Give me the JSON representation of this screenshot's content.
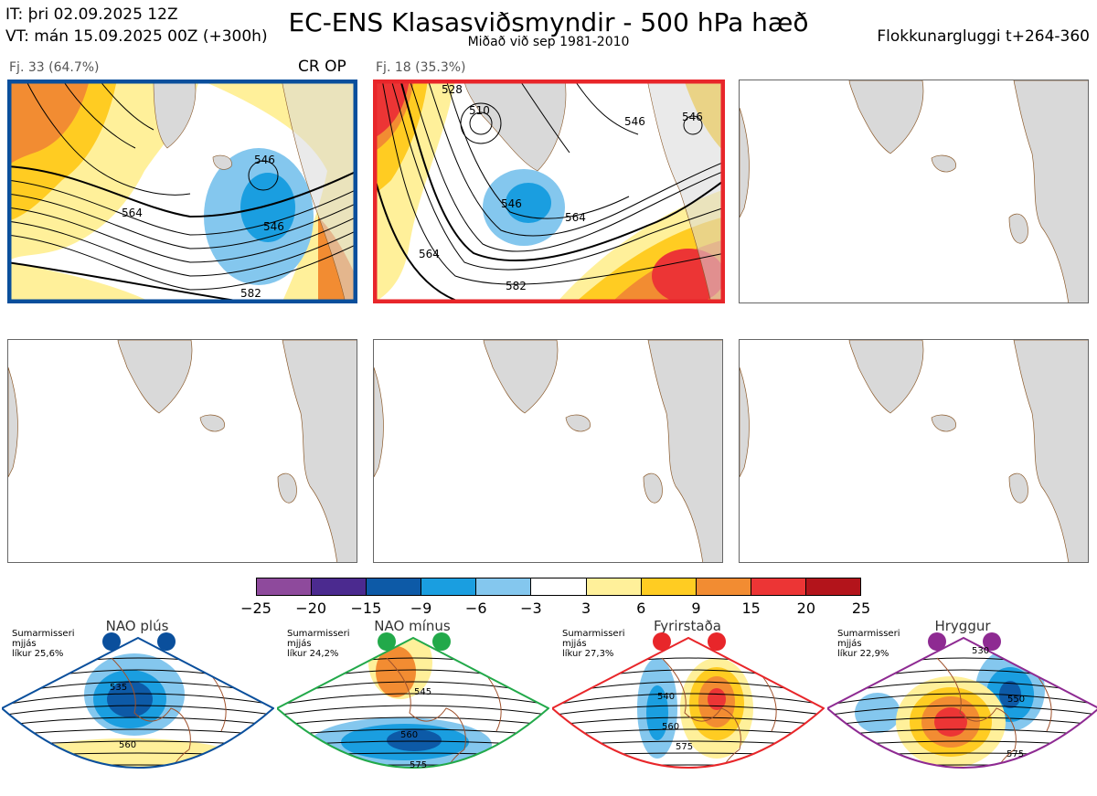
{
  "header": {
    "it_line": "IT: þri 02.09.2025 12Z",
    "vt_line": "VT: mán 15.09.2025 00Z  (+300h)",
    "title": "EC-ENS Klasasviðsmyndir - 500 hPa hæð",
    "subtitle": "Miðað við sep 1981-2010",
    "window": "Flokkunargluggi t+264-360"
  },
  "clusters": [
    {
      "label": "Fj. 33 (64.7%)",
      "tag": "CR OP",
      "border": "#0a4f9c",
      "contours": [
        "546",
        "564",
        "582",
        "546"
      ]
    },
    {
      "label": "Fj. 18 (35.3%)",
      "tag": "",
      "border": "#e8262a",
      "contours": [
        "510",
        "546",
        "546",
        "564",
        "564",
        "582",
        "528",
        "546"
      ]
    }
  ],
  "colorbar": {
    "colors": [
      "#8e4a9c",
      "#4b2a8f",
      "#0d5aa7",
      "#1a9ee0",
      "#84c7ee",
      "#ffffff",
      "#fff09a",
      "#ffcc22",
      "#f28c32",
      "#ec3535",
      "#b3141b"
    ],
    "ticks": [
      "−25",
      "−20",
      "−15",
      "−9",
      "−6",
      "−3",
      "3",
      "6",
      "9",
      "15",
      "20",
      "25"
    ]
  },
  "regimes": [
    {
      "title": "NAO plús",
      "info": [
        "Sumarmisseri",
        "mjjás",
        "líkur 25,6%"
      ],
      "color": "#0a4f9c",
      "contours": [
        "535",
        "560"
      ]
    },
    {
      "title": "NAO mínus",
      "info": [
        "Sumarmisseri",
        "mjjás",
        "líkur 24,2%"
      ],
      "color": "#22a94a",
      "contours": [
        "545",
        "560",
        "575"
      ]
    },
    {
      "title": "Fyrirstaða",
      "info": [
        "Sumarmisseri",
        "mjjás",
        "líkur 27,3%"
      ],
      "color": "#e8262a",
      "contours": [
        "540",
        "560",
        "575"
      ]
    },
    {
      "title": "Hryggur",
      "info": [
        "Sumarmisseri",
        "mjjás",
        "líkur 22,9%"
      ],
      "color": "#8e2a92",
      "contours": [
        "530",
        "550",
        "575"
      ]
    }
  ]
}
